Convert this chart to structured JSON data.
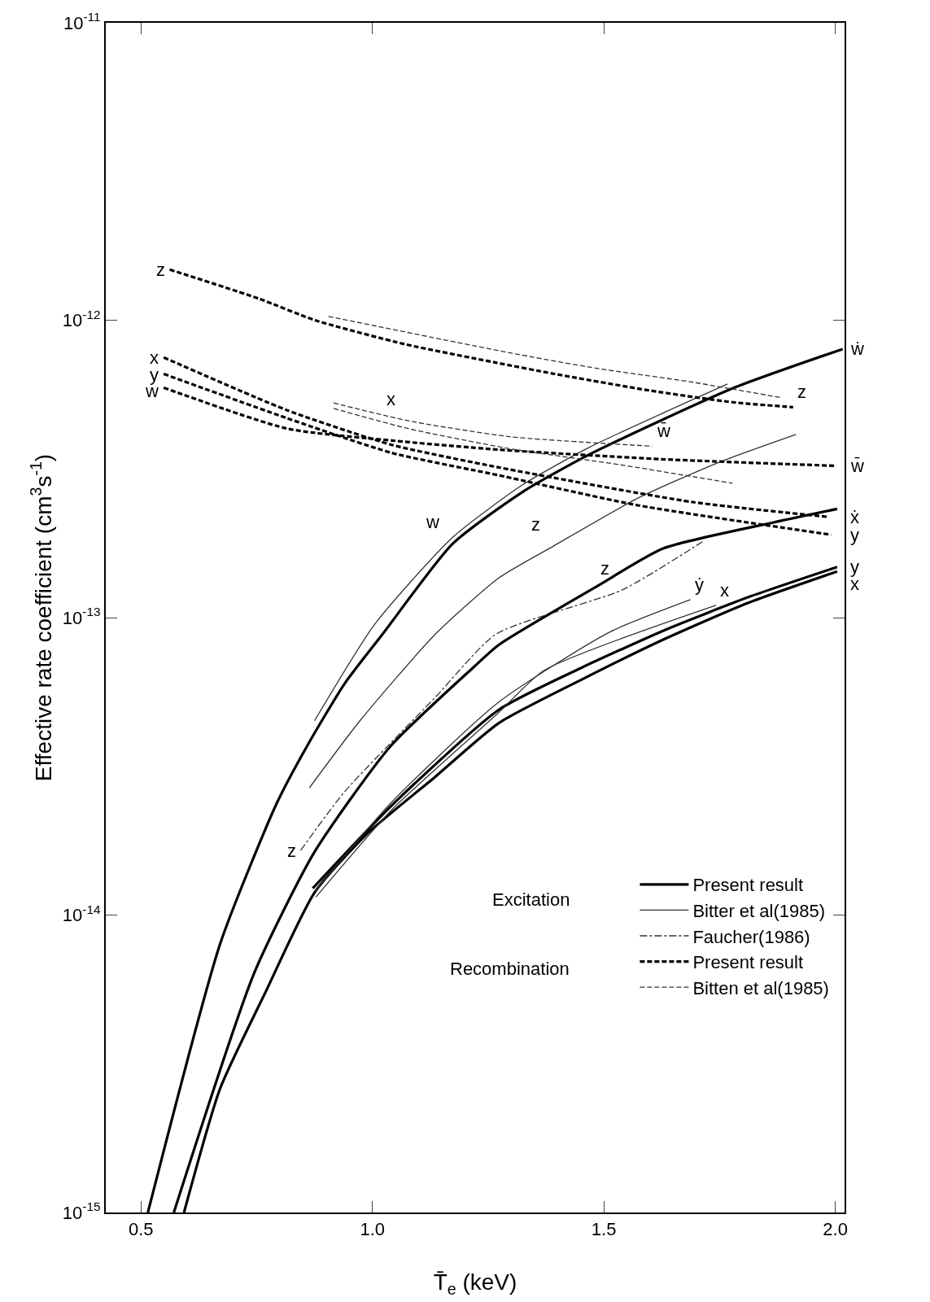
{
  "chart_data": {
    "type": "line",
    "xlabel": "T̄$_{e}$ (keV)",
    "ylabel": "Effective rate coefficient (cm$^{3}$s$^{-1}$)",
    "log": "y",
    "grid": false,
    "legend": "bottom right",
    "marker": "none",
    "xlim": [
      0.424,
      2.02
    ],
    "xticks": [
      0.5,
      {
        "value": 1,
        "label": "1.0"
      },
      1.5,
      {
        "value": 2,
        "label": "2.0"
      }
    ],
    "ylim": [
      1e-15,
      1e-11
    ],
    "yticks": [
      {
        "value": 1e-15,
        "label": "10$^{-15}$"
      },
      {
        "value": 1e-14,
        "label": "10$^{-14}$"
      },
      {
        "value": 1e-13,
        "label": "10$^{-13}$"
      },
      {
        "value": 1e-12,
        "label": "10$^{-12}$"
      },
      {
        "value": 1e-11,
        "label": "10$^{-11}$"
      }
    ],
    "series": [
      {
        "name": "Present result",
        "color": "#000000",
        "line_style": "solid",
        "x": [
          0.515,
          0.671,
          0.793,
          0.858,
          0.94,
          1.022,
          1.173,
          1.325,
          1.469,
          1.778,
          2.016
        ],
        "values": [
          1e-15,
          8e-15,
          2.37e-14,
          3.68e-14,
          6e-14,
          8.8e-14,
          1.77e-13,
          2.65e-13,
          3.54e-13,
          5.9e-13,
          8e-13
        ]
      },
      {
        "name": "Bitter et al(1985)",
        "color": "#333333",
        "line_style": "solid",
        "x": [
          0.875,
          1.005,
          1.173,
          1.325,
          1.469,
          1.767
        ],
        "values": [
          4.5e-14,
          9.5e-14,
          1.86e-13,
          2.8e-13,
          3.74e-13,
          6.1e-13
        ]
      },
      {
        "name": "Faucher(1986)",
        "color": "#333333",
        "line_style": "dashdot",
        "x": [
          0.845,
          0.94,
          1.136,
          1.267,
          1.54,
          1.713
        ],
        "values": [
          1.65e-14,
          2.6e-14,
          5.4e-14,
          8.8e-14,
          1.24e-13,
          1.8e-13
        ]
      },
      {
        "name": "Present result",
        "color": "#000000",
        "line_style": "dashed",
        "x": [
          0.562,
          0.756,
          0.876,
          1.071,
          1.267,
          1.393,
          1.6,
          1.778,
          1.909
        ],
        "values": [
          1.48e-12,
          1.18e-12,
          1e-12,
          8.3e-13,
          7.2e-13,
          6.6e-13,
          5.8e-13,
          5.3e-13,
          5.1e-13
        ]
      },
      {
        "name": "Bitten et al(1985)",
        "color": "#333333",
        "line_style": "dashed",
        "x": [
          0.905,
          1.291,
          1.482,
          1.689,
          1.88
        ],
        "values": [
          1.03e-12,
          7.8e-13,
          6.9e-13,
          6.2e-13,
          5.5e-13
        ]
      },
      {
        "color": "#000000",
        "line_style": "solid",
        "x": [
          0.571,
          0.744,
          0.875,
          1.038,
          1.218,
          1.273,
          1.487,
          1.629,
          1.867,
          2.004
        ],
        "values": [
          1e-15,
          6.35e-15,
          1.63e-14,
          3.68e-14,
          6.8e-14,
          8.1e-14,
          1.28e-13,
          1.71e-13,
          2.09e-13,
          2.32e-13
        ]
      },
      {
        "color": "#000000",
        "line_style": "solid",
        "x": [
          0.593,
          0.671,
          0.769,
          0.875,
          0.989,
          1.136,
          1.273,
          1.453,
          1.633,
          1.811,
          2.004
        ],
        "values": [
          1e-15,
          2.61e-15,
          5.5e-15,
          1.19e-14,
          1.88e-14,
          2.92e-14,
          4.42e-14,
          6.2e-14,
          8.5e-14,
          1.12e-13,
          1.43e-13
        ]
      },
      {
        "color": "#000000",
        "line_style": "solid",
        "x": [
          0.871,
          1.042,
          1.273,
          1.453,
          1.633,
          1.811,
          2.004
        ],
        "values": [
          1.23e-14,
          2.34e-14,
          4.9e-14,
          6.8e-14,
          9.1e-14,
          1.17e-13,
          1.48e-13
        ]
      },
      {
        "color": "#333333",
        "line_style": "solid",
        "x": [
          0.864,
          0.973,
          1.136,
          1.273,
          1.391,
          1.571,
          1.749,
          1.915
        ],
        "values": [
          2.68e-14,
          4.5e-14,
          8.8e-14,
          1.36e-13,
          1.74e-13,
          2.51e-13,
          3.33e-13,
          4.13e-13
        ]
      },
      {
        "color": "#333333",
        "line_style": "solid",
        "x": [
          0.875,
          1.042,
          1.273,
          1.513,
          1.687
        ],
        "values": [
          1.2e-14,
          2.4e-14,
          5.2e-14,
          8.95e-14,
          1.15e-13
        ]
      },
      {
        "color": "#333333",
        "line_style": "solid",
        "x": [
          0.878,
          1.042,
          1.273,
          1.371,
          1.742
        ],
        "values": [
          1.15e-14,
          2.26e-14,
          4.8e-14,
          6.65e-14,
          1.1e-13
        ]
      },
      {
        "color": "#000000",
        "line_style": "dashed",
        "x": [
          0.549,
          0.816,
          1.042,
          1.273,
          1.624,
          1.998
        ],
        "values": [
          5.93e-13,
          4.32e-13,
          3.94e-13,
          3.67e-13,
          3.41e-13,
          3.24e-13
        ]
      },
      {
        "color": "#000000",
        "line_style": "dashed",
        "x": [
          0.549,
          0.816,
          1.042,
          1.273,
          1.689,
          1.987
        ],
        "values": [
          7.5e-13,
          4.98e-13,
          3.81e-13,
          3.2e-13,
          2.45e-13,
          2.18e-13
        ]
      },
      {
        "color": "#000000",
        "line_style": "dashed",
        "x": [
          0.549,
          0.816,
          1.042,
          1.273,
          1.571,
          1.991
        ],
        "values": [
          6.6e-13,
          4.68e-13,
          3.58e-13,
          3.01e-13,
          2.39e-13,
          1.9e-13
        ]
      },
      {
        "color": "#333333",
        "line_style": "dashed",
        "x": [
          0.916,
          1.078,
          1.296,
          1.605
        ],
        "values": [
          5.27e-13,
          4.59e-13,
          4.06e-13,
          3.77e-13
        ]
      },
      {
        "color": "#333333",
        "line_style": "dashed",
        "x": [
          0.916,
          1.078,
          1.296,
          1.533,
          1.778
        ],
        "values": [
          5.05e-13,
          4.32e-13,
          3.7e-13,
          3.27e-13,
          2.83e-13
        ]
      }
    ],
    "annotations": [
      "Excitation",
      "Recombination",
      {
        "text": "z",
        "x": 0.562,
        "y": 1.48e-12
      },
      {
        "text": "x",
        "x": 0.549,
        "y": 7.5e-13
      },
      {
        "text": "y",
        "x": 0.549,
        "y": 6.6e-13
      },
      {
        "text": "w",
        "x": 0.549,
        "y": 5.93e-13
      },
      {
        "text": "x",
        "x": 1.078,
        "y": 4.59e-13
      },
      {
        "text": "w",
        "x": 1.173,
        "y": 1.77e-13
      },
      {
        "text": "z",
        "x": 1.391,
        "y": 1.74e-13
      },
      {
        "text": "z",
        "x": 1.54,
        "y": 1.24e-13
      },
      {
        "text": "z",
        "x": 0.845,
        "y": 1.65e-14
      },
      {
        "text": "ẏ",
        "x": 1.687,
        "y": 1.15e-13
      },
      {
        "text": "x",
        "x": 1.742,
        "y": 1.1e-13
      },
      {
        "text": "ẇ",
        "x": 2.016,
        "y": 8e-13
      },
      {
        "text": "z",
        "x": 1.909,
        "y": 5.1e-13
      },
      {
        "text": "w̄",
        "x": 1.605,
        "y": 3.77e-13
      },
      {
        "text": "w̄",
        "x": 1.998,
        "y": 3.24e-13
      },
      {
        "text": "ẋ",
        "x": 1.987,
        "y": 2.18e-13
      },
      {
        "text": "y",
        "x": 1.991,
        "y": 1.9e-13
      },
      {
        "text": "y",
        "x": 2.004,
        "y": 1.48e-13
      },
      {
        "text": "x",
        "x": 2.004,
        "y": 1.43e-13
      }
    ]
  }
}
